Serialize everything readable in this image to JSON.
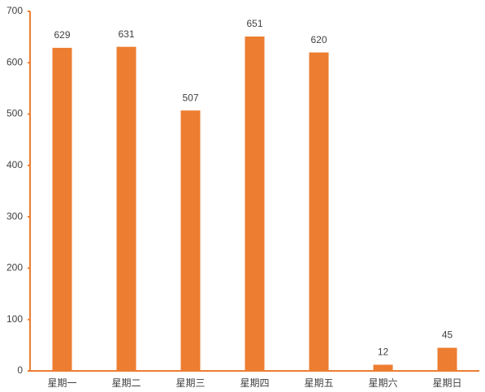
{
  "chart_data": {
    "type": "bar",
    "categories": [
      "星期一",
      "星期二",
      "星期三",
      "星期四",
      "星期五",
      "星期六",
      "星期日"
    ],
    "values": [
      629,
      631,
      507,
      651,
      620,
      12,
      45
    ],
    "color": "#ed7d31",
    "ylim": [
      0,
      700
    ],
    "yticks": [
      0,
      100,
      200,
      300,
      400,
      500,
      600,
      700
    ],
    "grid": false
  }
}
